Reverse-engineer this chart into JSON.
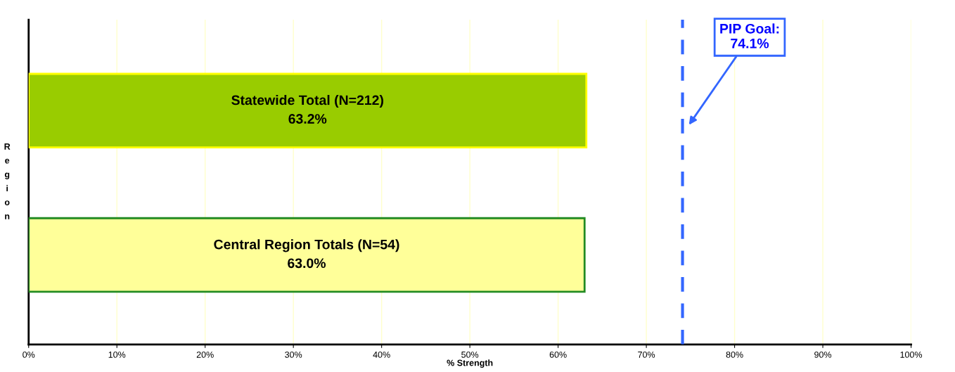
{
  "chart_data": {
    "type": "bar",
    "orientation": "horizontal",
    "categories": [
      "Statewide Total (N=212)",
      "Central Region Totals (N=54)"
    ],
    "values": [
      63.2,
      63.0
    ],
    "value_labels": [
      "63.2%",
      "63.0%"
    ],
    "colors": [
      "#99cc00",
      "#ffff99"
    ],
    "xlabel": "% Strength",
    "ylabel": "Region",
    "xlim": [
      0,
      100
    ],
    "xticks": [
      {
        "value": 0,
        "label": "0%"
      },
      {
        "value": 10,
        "label": "10%"
      },
      {
        "value": 20,
        "label": "20%"
      },
      {
        "value": 30,
        "label": "30%"
      },
      {
        "value": 40,
        "label": "40%"
      },
      {
        "value": 50,
        "label": "50%"
      },
      {
        "value": 60,
        "label": "60%"
      },
      {
        "value": 70,
        "label": "70%"
      },
      {
        "value": 80,
        "label": "80%"
      },
      {
        "value": 90,
        "label": "90%"
      },
      {
        "value": 100,
        "label": "100%"
      }
    ],
    "tick_labels": "x",
    "grid": "x",
    "legend": false,
    "ref_lines": [
      {
        "axis": "x",
        "value": 74.1,
        "label": "PIP Goal:\n74.1%",
        "color": "#3366ff",
        "line_style": "dashed"
      }
    ]
  }
}
